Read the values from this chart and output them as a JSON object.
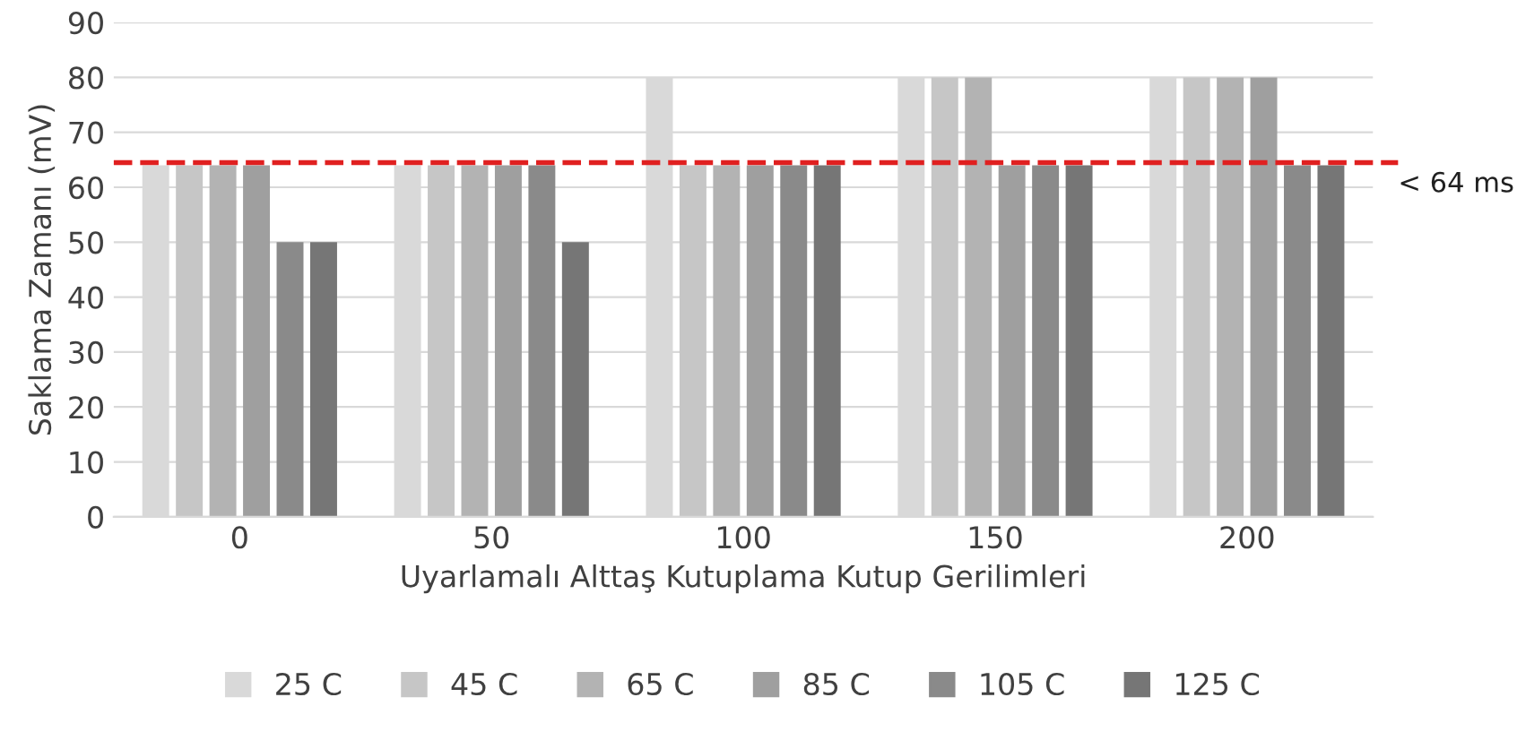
{
  "chart_data": {
    "type": "bar",
    "xlabel": "Uyarlamalı Alttaş Kutuplama Kutup Gerilimleri",
    "ylabel": "Saklama Zamanı (mV)",
    "categories": [
      "0",
      "50",
      "100",
      "150",
      "200"
    ],
    "series": [
      {
        "name": "25 C",
        "color": "#d9d9d9",
        "values": [
          64,
          64,
          80,
          80,
          80
        ]
      },
      {
        "name": "45 C",
        "color": "#c6c6c6",
        "values": [
          64,
          64,
          64,
          80,
          80
        ]
      },
      {
        "name": "65 C",
        "color": "#b3b3b3",
        "values": [
          64,
          64,
          64,
          80,
          80
        ]
      },
      {
        "name": "85 C",
        "color": "#9f9f9f",
        "values": [
          64,
          64,
          64,
          64,
          80
        ]
      },
      {
        "name": "105 C",
        "color": "#8a8a8a",
        "values": [
          50,
          64,
          64,
          64,
          64
        ]
      },
      {
        "name": "125 C",
        "color": "#767676",
        "values": [
          50,
          50,
          64,
          64,
          64
        ]
      }
    ],
    "ylim": [
      0,
      90
    ],
    "yticks": [
      0,
      10,
      20,
      30,
      40,
      50,
      60,
      70,
      80,
      90
    ],
    "grid": "y",
    "legend": "bottom",
    "ref_lines": [
      {
        "axis": "y",
        "value": 64.5,
        "label": "< 64 ms",
        "color": "#e02020",
        "line_style": "dashed"
      }
    ]
  }
}
